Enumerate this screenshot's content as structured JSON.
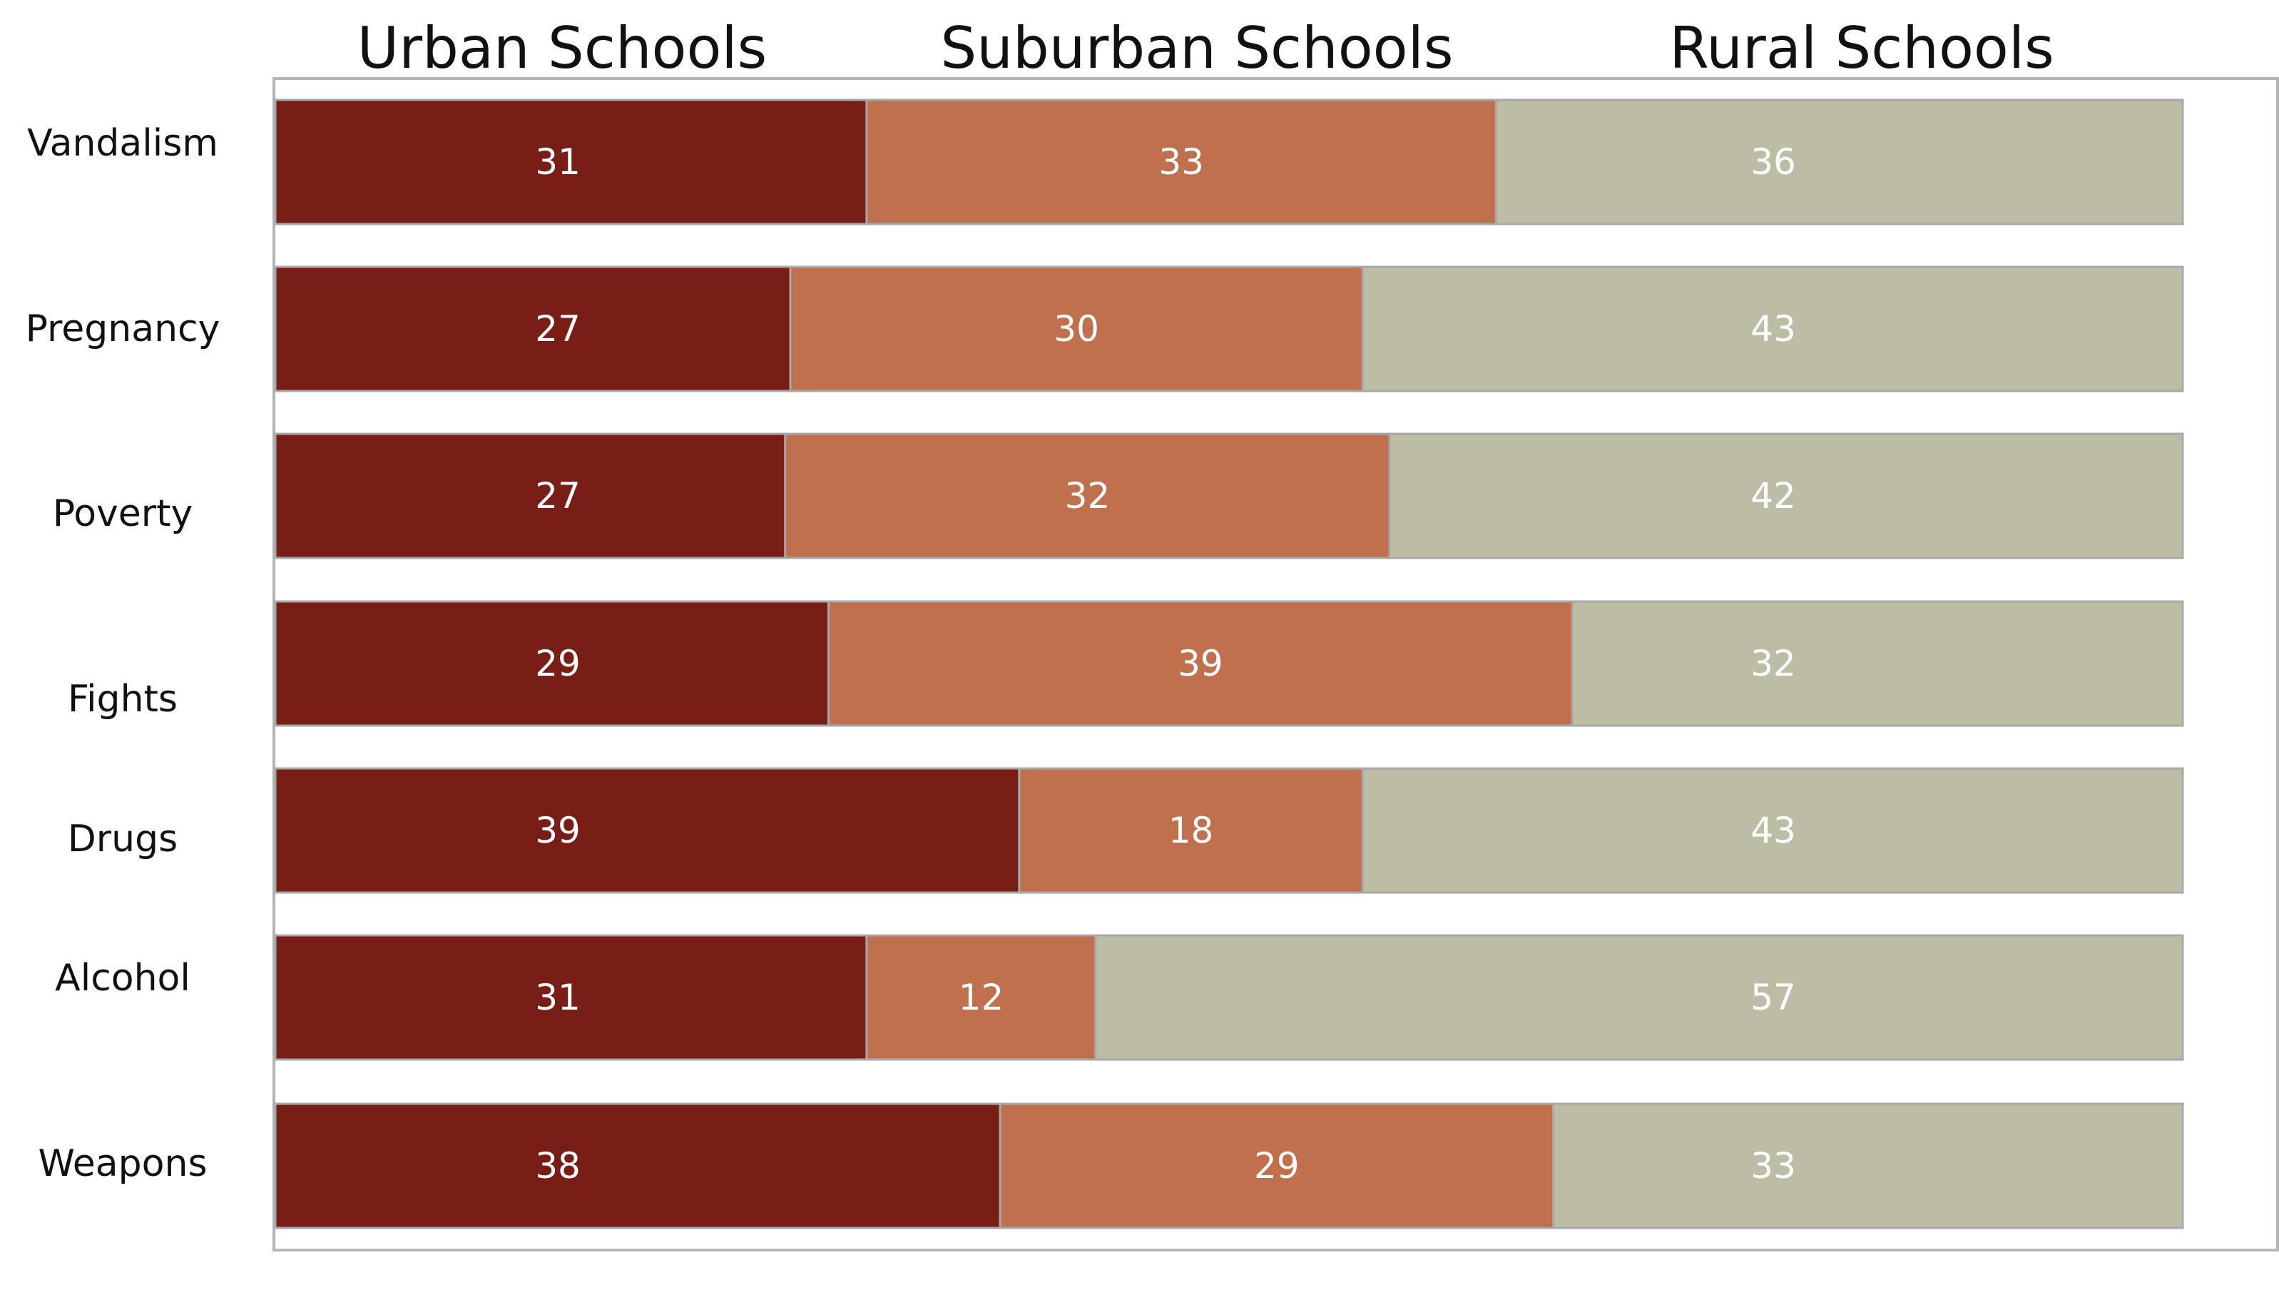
{
  "chart_data": {
    "type": "bar",
    "orientation": "horizontal",
    "stacked": true,
    "categories": [
      "Vandalism",
      "Pregnancy",
      "Poverty",
      "Fights",
      "Drugs",
      "Alcohol",
      "Weapons"
    ],
    "series": [
      {
        "name": "Urban Schools",
        "color": "#781e16",
        "values": [
          31,
          27,
          27,
          29,
          39,
          31,
          38
        ]
      },
      {
        "name": "Suburban Schools",
        "color": "#c1704e",
        "values": [
          33,
          30,
          32,
          39,
          18,
          12,
          29
        ]
      },
      {
        "name": "Rural Schools",
        "color": "#bdbda5",
        "values": [
          36,
          43,
          42,
          32,
          43,
          57,
          33
        ]
      }
    ],
    "xlim": [
      0,
      100
    ],
    "grid": false,
    "legend": "top",
    "data_labels": true
  }
}
